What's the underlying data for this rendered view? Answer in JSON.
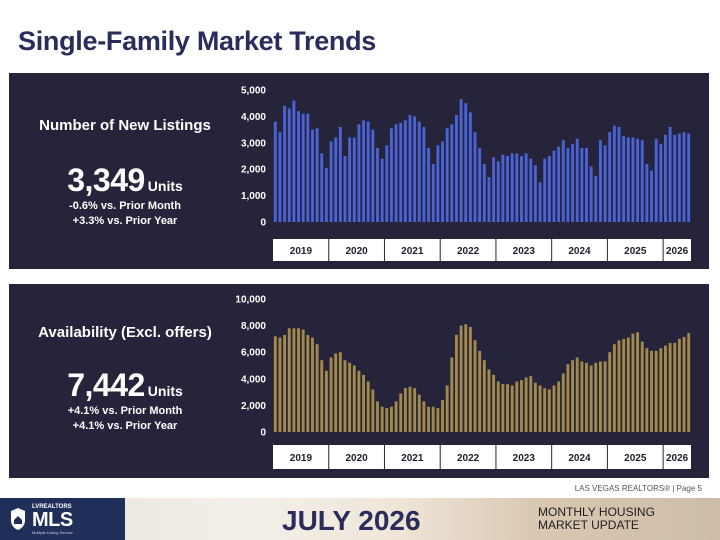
{
  "page": {
    "title": "Single-Family Market Trends",
    "footer_note": "LAS VEGAS REALTORS® | Page 5",
    "month": "JULY 2026",
    "update_line1": "MONTHLY HOUSING",
    "update_line2": "MARKET UPDATE",
    "logo_top": "LVREALTORS",
    "logo_mls": "MLS",
    "logo_sub": "Multiple Listing Service"
  },
  "panels": [
    {
      "heading": "Number of New Listings",
      "value": "3,349",
      "unit": "Units",
      "line1": "-0.6% vs. Prior Month",
      "line2": "+3.3% vs. Prior Year"
    },
    {
      "heading": "Availability (Excl. offers)",
      "value": "7,442",
      "unit": "Units",
      "line1": "+4.1% vs. Prior Month",
      "line2": "+4.1% vs. Prior Year"
    }
  ],
  "colors": {
    "panel_bg": "#26243b",
    "new_listings_bar": "#4a63d6",
    "availability_bar": "#a3894a",
    "title": "#2a2d5c"
  },
  "chart_data": [
    {
      "type": "bar",
      "title": "Number of New Listings",
      "x_labels": [
        "2019",
        "2020",
        "2021",
        "2022",
        "2023",
        "2024",
        "2025",
        "2026"
      ],
      "ylim": [
        0,
        5000
      ],
      "y_ticks": [
        "0",
        "1,000",
        "2,000",
        "3,000",
        "4,000",
        "5,000"
      ],
      "y_tick_values": [
        0,
        1000,
        2000,
        3000,
        4000,
        5000
      ],
      "grid": false,
      "values": [
        3800,
        3400,
        4400,
        4300,
        4600,
        4200,
        4100,
        4100,
        3500,
        3550,
        2600,
        2050,
        3050,
        3200,
        3600,
        2500,
        3200,
        3200,
        3700,
        3850,
        3800,
        3500,
        2800,
        2400,
        2900,
        3550,
        3700,
        3750,
        3850,
        4050,
        4000,
        3800,
        3600,
        2800,
        2200,
        2900,
        3050,
        3550,
        3700,
        4050,
        4650,
        4500,
        4150,
        3400,
        2800,
        2200,
        1700,
        2450,
        2300,
        2550,
        2500,
        2600,
        2600,
        2500,
        2600,
        2400,
        2150,
        1500,
        2400,
        2500,
        2700,
        2850,
        3100,
        2800,
        2950,
        3150,
        2800,
        2800,
        2100,
        1750,
        3100,
        2900,
        3400,
        3650,
        3600,
        3250,
        3200,
        3200,
        3150,
        3100,
        2200,
        1950,
        3150,
        2950,
        3300,
        3600,
        3300,
        3350,
        3400,
        3349
      ]
    },
    {
      "type": "bar",
      "title": "Availability (Excl. offers)",
      "x_labels": [
        "2019",
        "2020",
        "2021",
        "2022",
        "2023",
        "2024",
        "2025",
        "2026"
      ],
      "ylim": [
        0,
        10000
      ],
      "y_ticks": [
        "0",
        "2,000",
        "4,000",
        "6,000",
        "8,000",
        "10,000"
      ],
      "y_tick_values": [
        0,
        2000,
        4000,
        6000,
        8000,
        10000
      ],
      "grid": false,
      "values": [
        7200,
        7100,
        7300,
        7800,
        7800,
        7800,
        7700,
        7300,
        7100,
        6600,
        5400,
        4600,
        5600,
        5900,
        6000,
        5400,
        5200,
        5000,
        4600,
        4300,
        3800,
        3200,
        2300,
        1900,
        1800,
        1900,
        2300,
        2900,
        3300,
        3400,
        3300,
        2800,
        2300,
        1900,
        1900,
        1800,
        2400,
        3500,
        5600,
        7300,
        8000,
        8100,
        7900,
        6900,
        6100,
        5400,
        4700,
        4300,
        3800,
        3600,
        3600,
        3500,
        3800,
        3900,
        4100,
        4200,
        3700,
        3500,
        3300,
        3200,
        3500,
        3800,
        4400,
        5100,
        5400,
        5600,
        5300,
        5200,
        5000,
        5200,
        5300,
        5300,
        6000,
        6600,
        6900,
        7000,
        7100,
        7400,
        7500,
        6800,
        6300,
        6100,
        6100,
        6300,
        6500,
        6700,
        6700,
        7000,
        7150,
        7442
      ]
    }
  ]
}
